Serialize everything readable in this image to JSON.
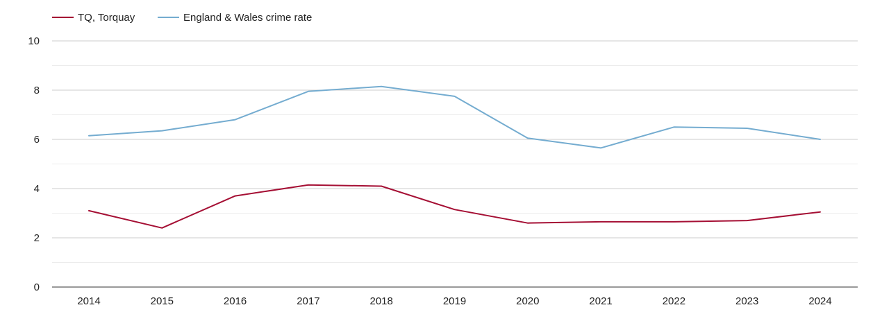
{
  "chart_data": {
    "type": "line",
    "title": "",
    "xlabel": "",
    "ylabel": "",
    "categories": [
      "2014",
      "2015",
      "2016",
      "2017",
      "2018",
      "2019",
      "2020",
      "2021",
      "2022",
      "2023",
      "2024"
    ],
    "series": [
      {
        "name": "TQ, Torquay",
        "color": "#a50f34",
        "values": [
          3.1,
          2.4,
          3.7,
          4.15,
          4.1,
          3.15,
          2.6,
          2.65,
          2.65,
          2.7,
          3.05
        ]
      },
      {
        "name": "England & Wales crime rate",
        "color": "#74acd0",
        "values": [
          6.15,
          6.35,
          6.8,
          7.95,
          8.15,
          7.75,
          6.05,
          5.65,
          6.5,
          6.45,
          6.0
        ]
      }
    ],
    "ylim": [
      0,
      10
    ],
    "yticks": [
      0,
      2,
      4,
      6,
      8,
      10
    ],
    "grid": true,
    "legend_position": "top-left"
  }
}
